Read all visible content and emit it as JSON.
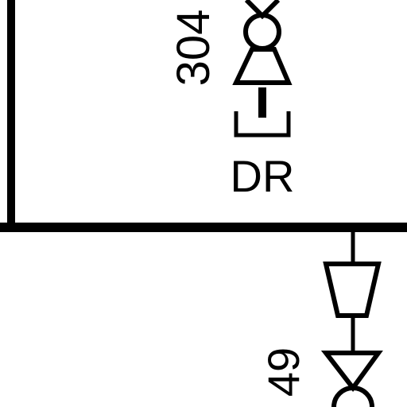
{
  "diagram": {
    "labels": {
      "upper_device_number": "304",
      "upper_device_tag": "DR",
      "lower_device_number": "49"
    },
    "colors": {
      "stroke": "#000000",
      "background": "#ffffff"
    }
  }
}
